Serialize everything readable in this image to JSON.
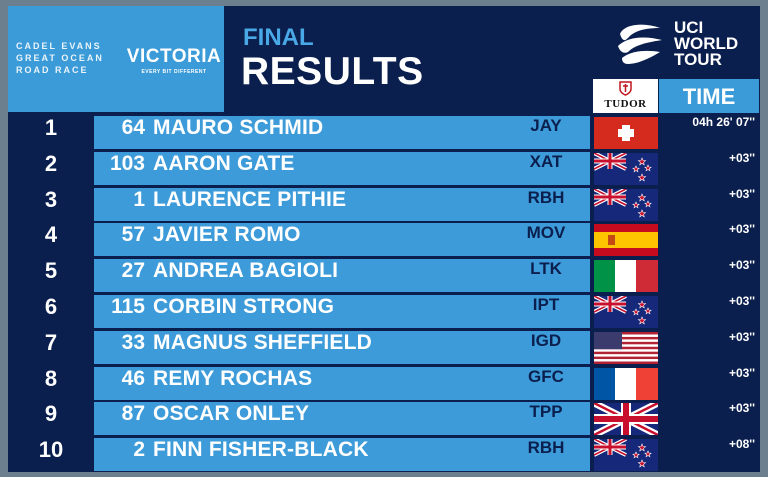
{
  "header": {
    "event_logo_lines": [
      "CADEL EVANS",
      "GREAT OCEAN",
      "ROAD RACE"
    ],
    "sponsor_name": "VICTORIA",
    "sponsor_tagline": "EVERY BIT DIFFERENT",
    "title_top": "FINAL",
    "title_main": "RESULTS",
    "tour_lines": [
      "UCI",
      "WORLD",
      "TOUR"
    ],
    "timing_brand": "TUDOR",
    "time_header": "TIME"
  },
  "colors": {
    "panel_dark": "#0b1f4e",
    "panel_blue": "#3b9ad8",
    "row_blue": "#3d9bd9",
    "final_text": "#49a8e6"
  },
  "results": [
    {
      "pos": "1",
      "bib": "64",
      "name": "MAURO SCHMID",
      "team": "JAY",
      "flag": "switzerland-flag",
      "time": "04h 26' 07''"
    },
    {
      "pos": "2",
      "bib": "103",
      "name": "AARON GATE",
      "team": "XAT",
      "flag": "new-zealand-flag",
      "time": "+03''"
    },
    {
      "pos": "3",
      "bib": "1",
      "name": "LAURENCE PITHIE",
      "team": "RBH",
      "flag": "new-zealand-flag",
      "time": "+03''"
    },
    {
      "pos": "4",
      "bib": "57",
      "name": "JAVIER ROMO",
      "team": "MOV",
      "flag": "spain-flag",
      "time": "+03''"
    },
    {
      "pos": "5",
      "bib": "27",
      "name": "ANDREA BAGIOLI",
      "team": "LTK",
      "flag": "italy-flag",
      "time": "+03''"
    },
    {
      "pos": "6",
      "bib": "115",
      "name": "CORBIN STRONG",
      "team": "IPT",
      "flag": "new-zealand-flag",
      "time": "+03''"
    },
    {
      "pos": "7",
      "bib": "33",
      "name": "MAGNUS SHEFFIELD",
      "team": "IGD",
      "flag": "usa-flag",
      "time": "+03''"
    },
    {
      "pos": "8",
      "bib": "46",
      "name": "REMY ROCHAS",
      "team": "GFC",
      "flag": "france-flag",
      "time": "+03''"
    },
    {
      "pos": "9",
      "bib": "87",
      "name": "OSCAR ONLEY",
      "team": "TPP",
      "flag": "united-kingdom-flag",
      "time": "+03''"
    },
    {
      "pos": "10",
      "bib": "2",
      "name": "FINN FISHER-BLACK",
      "team": "RBH",
      "flag": "new-zealand-flag",
      "time": "+08''"
    }
  ]
}
